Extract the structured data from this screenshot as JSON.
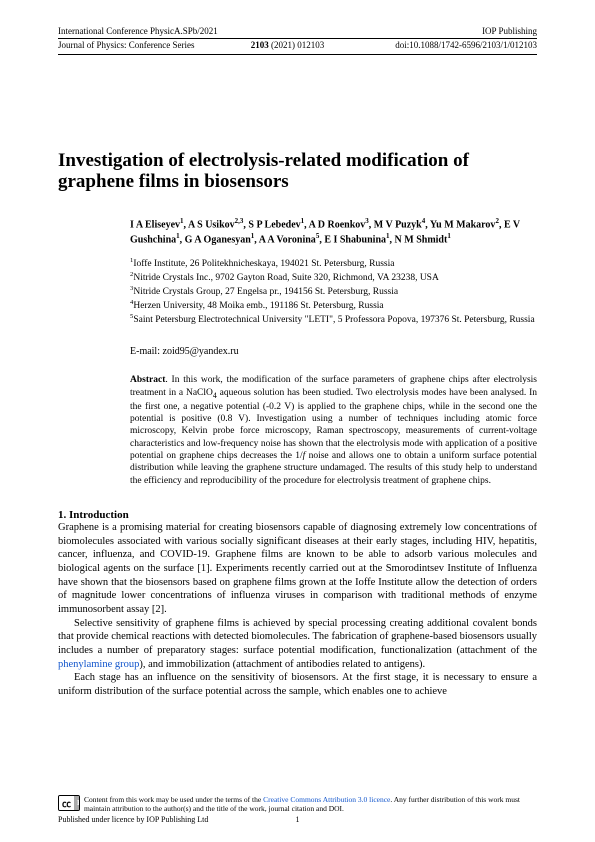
{
  "header": {
    "conference": "International Conference PhysicA.SPb/2021",
    "publisher": "IOP Publishing",
    "journal": "Journal of Physics: Conference Series",
    "volume": "2103",
    "year": "(2021)",
    "article": "012103",
    "doi": "doi:10.1088/1742-6596/2103/1/012103"
  },
  "title": "Investigation of electrolysis-related modification of graphene films in biosensors",
  "authors_html": "I A Eliseyev<sup>1</sup>, A S Usikov<sup>2,3</sup>, S P Lebedev<sup>1</sup>, A D Roenkov<sup>3</sup>, M V Puzyk<sup>4</sup>, Yu M Makarov<sup>2</sup>, E V Gushchina<sup>1</sup>, G A Oganesyan<sup>1</sup>, A A Voronina<sup>5</sup>, E I Shabunina<sup>1</sup>, N M Shmidt<sup>1</sup>",
  "affiliations": [
    "Ioffe Institute, 26 Politekhnicheskaya, 194021 St. Petersburg, Russia",
    "Nitride Crystals Inc., 9702 Gayton Road, Suite 320, Richmond, VA 23238, USA",
    "Nitride Crystals Group, 27 Engelsa pr., 194156 St. Petersburg, Russia",
    "Herzen University, 48 Moika emb., 191186 St. Petersburg, Russia",
    "Saint Petersburg Electrotechnical University \"LETI\", 5 Professora Popova, 197376 St. Petersburg, Russia"
  ],
  "email_label": "E-mail:",
  "email": "zoid95@yandex.ru",
  "abstract_label": "Abstract",
  "abstract_html": ". In this work, the modification of the surface parameters of graphene chips after electrolysis treatment in a NaClO<sub>4</sub> aqueous solution has been studied. Two electrolysis modes have been analysed. In the first one, a negative potential (-0.2 V) is applied to the graphene chips, while in the second one the potential is positive (0.8 V). Investigation using a number of techniques including atomic force microscopy, Kelvin probe force microscopy, Raman spectroscopy, measurements of current-voltage characteristics and low-frequency noise has shown that the electrolysis mode with application of a positive potential on graphene chips decreases the 1/<i>f</i> noise and allows one to obtain a uniform surface potential distribution while leaving the graphene structure undamaged. The results of this study help to understand the efficiency and reproducibility of the procedure for electrolysis treatment of graphene chips.",
  "section1": {
    "heading": "1.  Introduction",
    "para1_html": "Graphene is a promising material for creating biosensors capable of diagnosing extremely low concentrations of biomolecules associated with various socially significant diseases at their early stages, including HIV, hepatitis, cancer, influenza, and COVID-19. Graphene films are known to be able to adsorb various molecules and biological agents on the surface [1]. Experiments recently carried out at the Smorodintsev Institute of Influenza have shown that the biosensors based on graphene films grown at the Ioffe Institute allow the detection of orders of magnitude lower concentrations of influenza viruses in comparison with traditional methods of enzyme immunosorbent assay [2].",
    "para2_html": "Selective sensitivity of graphene films is achieved by special processing creating additional covalent bonds that provide chemical reactions with detected biomolecules. The fabrication of graphene-based biosensors usually includes a number of preparatory stages: surface potential modification, functionalization (attachment of the <span class=\"link\">phenylamine group</span>), and immobilization (attachment of antibodies related to antigens).",
    "para3_html": "Each stage has an influence on the sensitivity of biosensors. At the first stage, it is necessary to ensure a uniform distribution of the surface potential across the sample, which enables one to achieve"
  },
  "footer": {
    "license_html": "Content from this work may be used under the terms of the <span class=\"link\">Creative Commons Attribution 3.0 licence</span>. Any further distribution of this work must maintain attribution to the author(s) and the title of the work, journal citation and DOI.",
    "published": "Published under licence by IOP Publishing Ltd",
    "page_number": "1"
  }
}
